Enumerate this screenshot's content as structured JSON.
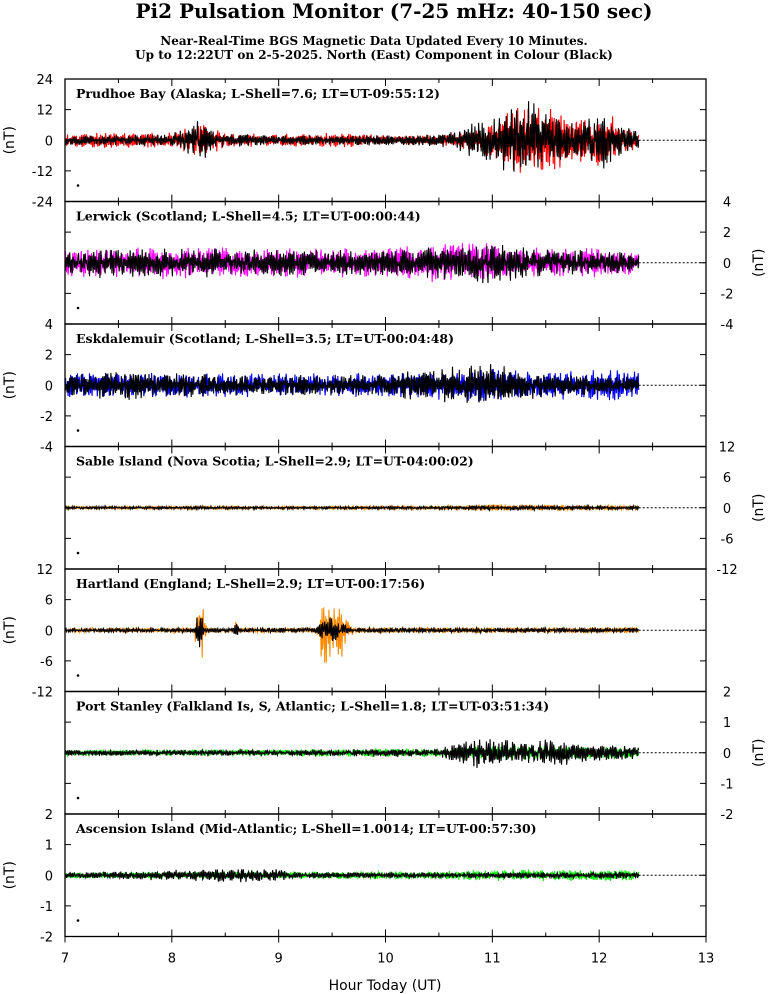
{
  "header": {
    "title": "Pi2 Pulsation Monitor (7-25 mHz: 40-150 sec)",
    "subtitle_line1": "Near-Real-Time BGS Magnetic Data Updated Every 10 Minutes.",
    "subtitle_line2": "Up to 12:22UT on 2-5-2025. North (East) Component in Colour (Black)"
  },
  "chart_data": {
    "type": "line",
    "xlabel": "Hour Today (UT)",
    "xlim": [
      7,
      13
    ],
    "x_ticks": [
      "7",
      "8",
      "9",
      "10",
      "11",
      "12",
      "13"
    ],
    "data_end_hour": 12.37,
    "panels": [
      {
        "label": "Prudhoe Bay (Alaska; L-Shell=7.6; LT=UT-09:55:12)",
        "ylabel": "(nT)",
        "ylim": [
          -24,
          24
        ],
        "axis_side": "left",
        "y_ticks": [
          "24",
          "12",
          "0",
          "-12",
          "-24"
        ],
        "north_color": "#ff0000",
        "north_activity": [
          [
            7.0,
            2.5
          ],
          [
            7.6,
            3.5
          ],
          [
            8.0,
            3
          ],
          [
            8.3,
            7
          ],
          [
            8.5,
            3
          ],
          [
            9.0,
            2.5
          ],
          [
            9.6,
            3
          ],
          [
            10.0,
            2
          ],
          [
            10.5,
            2
          ],
          [
            10.9,
            5
          ],
          [
            11.1,
            11
          ],
          [
            11.35,
            15
          ],
          [
            11.5,
            13
          ],
          [
            11.8,
            9
          ],
          [
            12.05,
            13
          ],
          [
            12.2,
            6
          ],
          [
            12.37,
            3
          ]
        ],
        "east_activity": [
          [
            7.0,
            2
          ],
          [
            7.5,
            2
          ],
          [
            8.0,
            2.5
          ],
          [
            8.3,
            9
          ],
          [
            8.4,
            3
          ],
          [
            9.0,
            2
          ],
          [
            10.0,
            2
          ],
          [
            10.5,
            2.5
          ],
          [
            10.9,
            8
          ],
          [
            11.1,
            12
          ],
          [
            11.35,
            17
          ],
          [
            11.6,
            10
          ],
          [
            11.8,
            7
          ],
          [
            12.05,
            13
          ],
          [
            12.37,
            3
          ]
        ]
      },
      {
        "label": "Lerwick (Scotland; L-Shell=4.5; LT=UT-00:00:44)",
        "ylabel": "(nT)",
        "ylim": [
          -4,
          4
        ],
        "axis_side": "right",
        "y_ticks": [
          "4",
          "2",
          "0",
          "-2",
          "-4"
        ],
        "north_color": "#ff00ff",
        "north_activity": [
          [
            7.0,
            0.9
          ],
          [
            8.0,
            1.1
          ],
          [
            9.0,
            1.0
          ],
          [
            10.0,
            1.0
          ],
          [
            10.8,
            1.5
          ],
          [
            11.2,
            1.0
          ],
          [
            12.0,
            1.0
          ],
          [
            12.37,
            0.8
          ]
        ],
        "east_activity": [
          [
            7.0,
            0.7
          ],
          [
            7.5,
            1.2
          ],
          [
            8.0,
            1.0
          ],
          [
            9.0,
            0.9
          ],
          [
            10.0,
            0.9
          ],
          [
            10.9,
            1.4
          ],
          [
            11.5,
            0.9
          ],
          [
            12.37,
            0.7
          ]
        ]
      },
      {
        "label": "Eskdalemuir (Scotland; L-Shell=3.5; LT=UT-00:04:48)",
        "ylabel": "(nT)",
        "ylim": [
          -4,
          4
        ],
        "axis_side": "left",
        "y_ticks": [
          "4",
          "2",
          "0",
          "-2",
          "-4"
        ],
        "north_color": "#0000ff",
        "north_activity": [
          [
            7.0,
            0.8
          ],
          [
            8.0,
            0.9
          ],
          [
            9.0,
            0.8
          ],
          [
            10.0,
            0.8
          ],
          [
            10.9,
            1.1
          ],
          [
            11.5,
            0.9
          ],
          [
            12.1,
            1.1
          ],
          [
            12.37,
            0.9
          ]
        ],
        "east_activity": [
          [
            7.0,
            0.7
          ],
          [
            7.5,
            1.1
          ],
          [
            8.0,
            0.8
          ],
          [
            9.0,
            0.7
          ],
          [
            10.0,
            0.7
          ],
          [
            10.9,
            1.6
          ],
          [
            11.5,
            0.8
          ],
          [
            12.37,
            0.6
          ]
        ]
      },
      {
        "label": "Sable Island (Nova Scotia; L-Shell=2.9; LT=UT-04:00:02)",
        "ylabel": "(nT)",
        "ylim": [
          -12,
          12
        ],
        "axis_side": "right",
        "y_ticks": [
          "12",
          "6",
          "0",
          "-6",
          "-12"
        ],
        "north_color": "#ff8c00",
        "north_activity": [
          [
            7.0,
            0.3
          ],
          [
            9.0,
            0.3
          ],
          [
            10.5,
            0.4
          ],
          [
            11.0,
            0.7
          ],
          [
            12.37,
            0.5
          ]
        ],
        "east_activity": [
          [
            7.0,
            0.3
          ],
          [
            9.0,
            0.3
          ],
          [
            10.5,
            0.3
          ],
          [
            11.0,
            0.5
          ],
          [
            12.37,
            0.4
          ]
        ]
      },
      {
        "label": "Hartland (England; L-Shell=2.9; LT=UT-00:17:56)",
        "ylabel": "(nT)",
        "ylim": [
          -12,
          12
        ],
        "axis_side": "left",
        "y_ticks": [
          "12",
          "6",
          "0",
          "-6",
          "-12"
        ],
        "north_color": "#ff8c00",
        "north_activity": [
          [
            7.0,
            0.4
          ],
          [
            8.2,
            0.5
          ],
          [
            8.27,
            8
          ],
          [
            8.33,
            0.5
          ],
          [
            8.58,
            0.5
          ],
          [
            8.6,
            3
          ],
          [
            8.63,
            0.5
          ],
          [
            9.35,
            0.5
          ],
          [
            9.43,
            9
          ],
          [
            9.5,
            6
          ],
          [
            9.6,
            6
          ],
          [
            9.7,
            0.6
          ],
          [
            10.5,
            0.6
          ],
          [
            12.37,
            0.6
          ]
        ],
        "east_activity": [
          [
            7.0,
            0.4
          ],
          [
            8.2,
            0.5
          ],
          [
            8.26,
            4
          ],
          [
            8.32,
            0.5
          ],
          [
            8.58,
            0.5
          ],
          [
            8.6,
            3
          ],
          [
            8.63,
            0.5
          ],
          [
            9.35,
            0.5
          ],
          [
            9.45,
            3
          ],
          [
            9.55,
            2
          ],
          [
            9.7,
            0.5
          ],
          [
            12.37,
            0.5
          ]
        ]
      },
      {
        "label": "Port Stanley (Falkland Is, S, Atlantic; L-Shell=1.8; LT=UT-03:51:34)",
        "ylabel": "(nT)",
        "ylim": [
          -2,
          2
        ],
        "axis_side": "right",
        "y_ticks": [
          "2",
          "1",
          "0",
          "-1",
          "-2"
        ],
        "north_color": "#00ee00",
        "north_activity": [
          [
            7.0,
            0.1
          ],
          [
            9.0,
            0.12
          ],
          [
            10.5,
            0.15
          ],
          [
            11.0,
            0.25
          ],
          [
            12.37,
            0.2
          ]
        ],
        "east_activity": [
          [
            7.0,
            0.1
          ],
          [
            9.0,
            0.1
          ],
          [
            10.5,
            0.15
          ],
          [
            10.85,
            0.55
          ],
          [
            11.2,
            0.4
          ],
          [
            11.6,
            0.45
          ],
          [
            12.0,
            0.3
          ],
          [
            12.37,
            0.2
          ]
        ]
      },
      {
        "label": "Ascension Island (Mid-Atlantic; L-Shell=1.0014; LT=UT-00:57:30)",
        "ylabel": "(nT)",
        "ylim": [
          -2,
          2
        ],
        "axis_side": "left",
        "y_ticks": [
          "2",
          "1",
          "0",
          "-1",
          "-2"
        ],
        "north_color": "#00ee00",
        "north_activity": [
          [
            7.0,
            0.1
          ],
          [
            9.0,
            0.12
          ],
          [
            10.5,
            0.15
          ],
          [
            11.3,
            0.2
          ],
          [
            12.37,
            0.2
          ]
        ],
        "east_activity": [
          [
            7.0,
            0.1
          ],
          [
            8.9,
            0.25
          ],
          [
            9.2,
            0.1
          ],
          [
            10.5,
            0.1
          ],
          [
            12.37,
            0.12
          ]
        ]
      }
    ]
  }
}
